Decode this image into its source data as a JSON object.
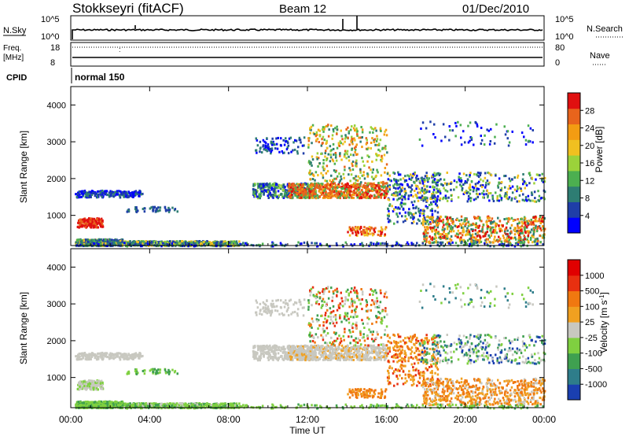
{
  "header": {
    "station": "Stokkseyri (fitACF)",
    "beam": "Beam 12",
    "date": "01/Dec/2010"
  },
  "top_panels": {
    "nsky_label": "N.Sky",
    "nsky_ticks": [
      "10^5",
      "10^0"
    ],
    "nsearch_label": "N.Search",
    "nsearch_ticks": [
      "10^5",
      "10^0"
    ],
    "freq_label_1": "Freq.",
    "freq_label_2": "[MHz]",
    "freq_ticks": [
      "18",
      "8"
    ],
    "nave_label": "Nave",
    "nave_ticks": [
      "80",
      "0"
    ],
    "cpid_label": "CPID",
    "cpid_value": "normal 150"
  },
  "chart_data": [
    {
      "type": "heatmap",
      "name": "power",
      "xlabel": "",
      "ylabel": "Slant Range [km]",
      "x_range_hours": [
        0,
        24
      ],
      "ylim": [
        180,
        4500
      ],
      "yticks": [
        1000,
        2000,
        3000,
        4000
      ],
      "colorbar_label": "Power [dB]",
      "colorbar_ticks": [
        "28",
        "24",
        "20",
        "16",
        "12",
        "8",
        "4"
      ],
      "colors": [
        "#0000ff",
        "#1f3ea8",
        "#2e7d73",
        "#4caf50",
        "#9bd23a",
        "#f0c020",
        "#f39c12",
        "#e8641c",
        "#e01010"
      ]
    },
    {
      "type": "heatmap",
      "name": "velocity",
      "xlabel": "Time UT",
      "ylabel": "Slant Range [km]",
      "x_range_hours": [
        0,
        24
      ],
      "ylim": [
        180,
        4500
      ],
      "yticks": [
        1000,
        2000,
        3000,
        4000
      ],
      "xticks": [
        "00:00",
        "04:00",
        "08:00",
        "12:00",
        "16:00",
        "20:00",
        "00:00"
      ],
      "colorbar_label": "Velocity [m s^-1]",
      "colorbar_ticks": [
        "1000",
        "500",
        "100",
        "25",
        "-25",
        "-100",
        "-500",
        "-1000"
      ],
      "colors": [
        "#1a3fb0",
        "#2e7d8a",
        "#3fa050",
        "#7fd040",
        "#c8c8c0",
        "#f0a020",
        "#f07810",
        "#e83010",
        "#e00000"
      ]
    }
  ]
}
